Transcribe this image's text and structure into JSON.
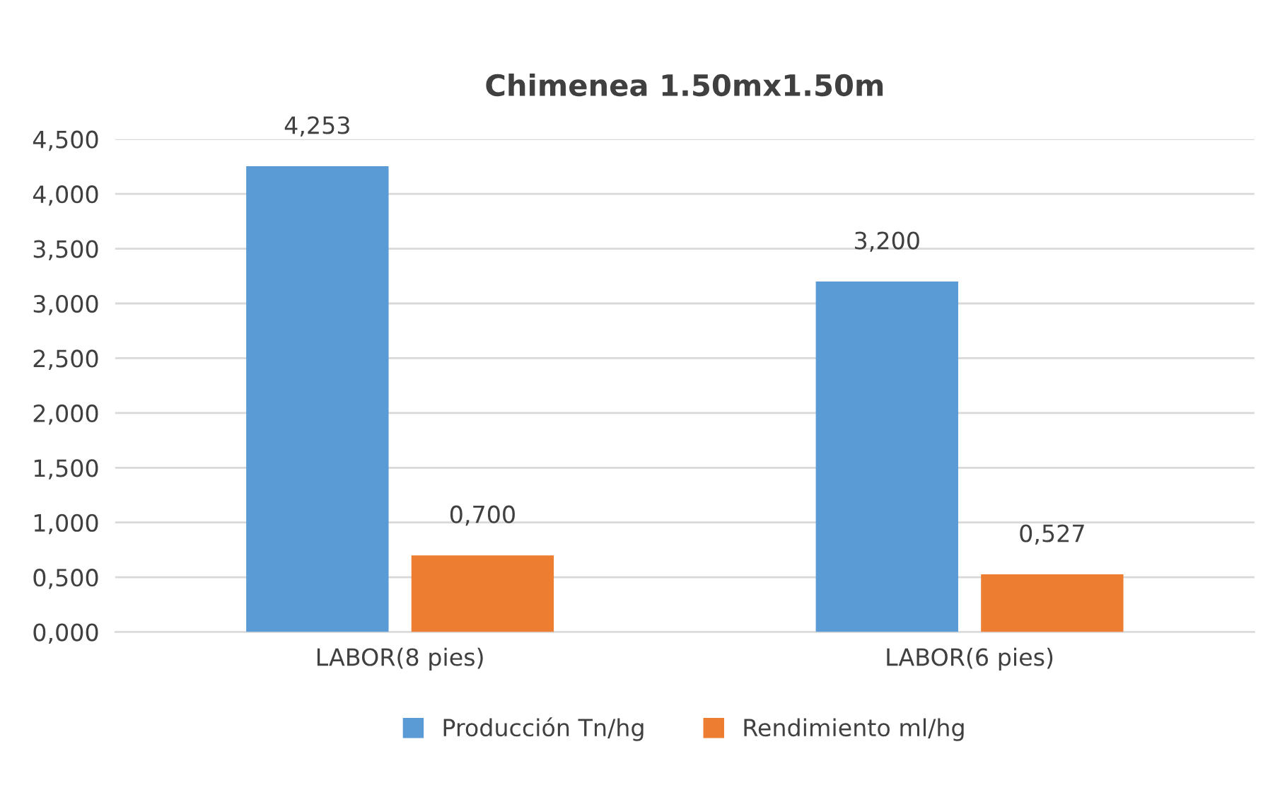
{
  "chart_data": {
    "type": "bar",
    "title": "Chimenea 1.50mx1.50m",
    "categories": [
      "LABOR(8 pies)",
      "LABOR(6 pies)"
    ],
    "series": [
      {
        "name": "Producción Tn/hg",
        "color": "#5b9bd5",
        "values": [
          4.253,
          3.2
        ],
        "value_labels": [
          "4,253",
          "3,200"
        ]
      },
      {
        "name": "Rendimiento ml/hg",
        "color": "#ed7d31",
        "values": [
          0.7,
          0.527
        ],
        "value_labels": [
          "0,700",
          "0,527"
        ]
      }
    ],
    "ylim": [
      0,
      4.5
    ],
    "yticks": [
      {
        "value": 0,
        "label": "0,000"
      },
      {
        "value": 0.5,
        "label": "0,500"
      },
      {
        "value": 1,
        "label": "1,000"
      },
      {
        "value": 1.5,
        "label": "1,500"
      },
      {
        "value": 2,
        "label": "2,000"
      },
      {
        "value": 2.5,
        "label": "2,500"
      },
      {
        "value": 3,
        "label": "3,000"
      },
      {
        "value": 3.5,
        "label": "3,500"
      },
      {
        "value": 4,
        "label": "4,000"
      },
      {
        "value": 4.5,
        "label": "4,500"
      }
    ],
    "grid": "y",
    "legend": "bottom"
  }
}
